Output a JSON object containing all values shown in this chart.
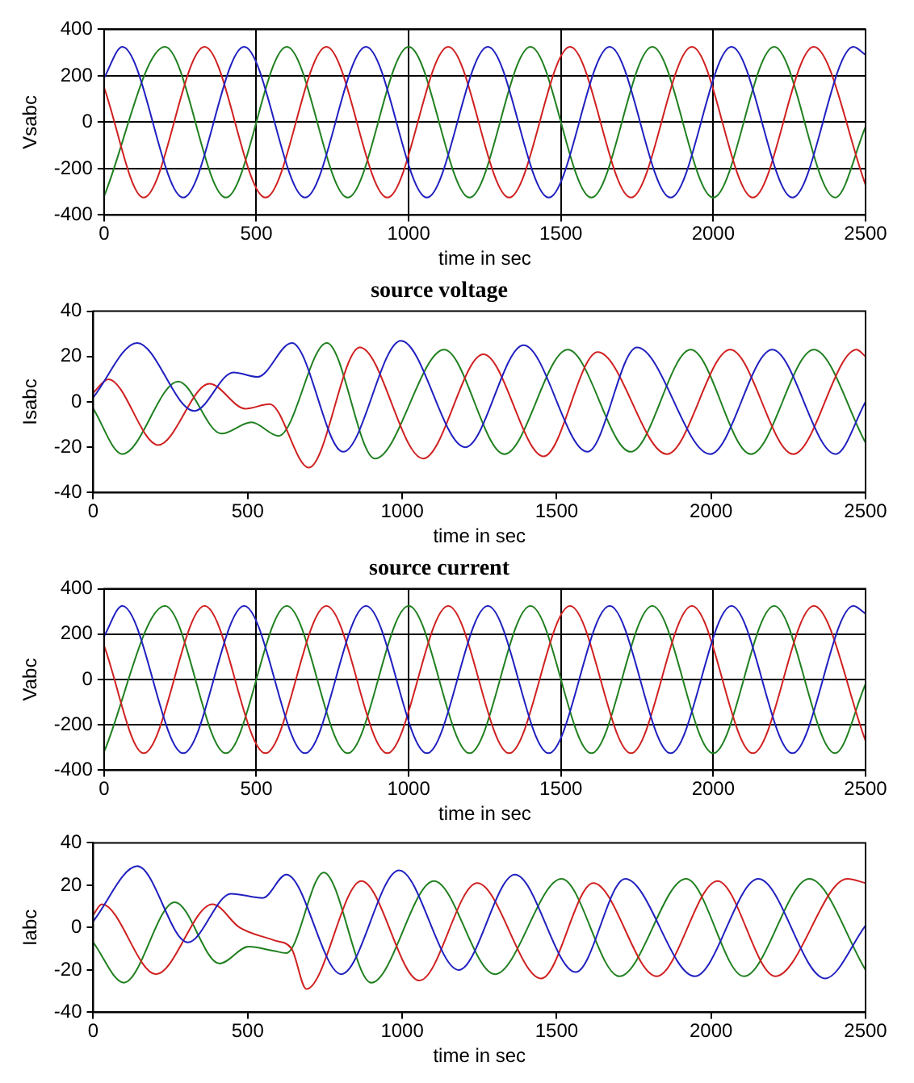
{
  "chart_data": [
    {
      "type": "line",
      "ylabel": "Vsabc",
      "xlabel": "time in sec",
      "xlim": [
        0,
        2500
      ],
      "xticks": [
        0,
        500,
        1000,
        1500,
        2000,
        2500
      ],
      "ylim": [
        -400,
        400
      ],
      "yticks": [
        -400,
        -200,
        0,
        200,
        400
      ],
      "grid": true,
      "series": [
        {
          "color": "#2020c0",
          "x": [
            0,
            60,
            260,
            460,
            660,
            860,
            1060,
            1260,
            1460,
            1660,
            1860,
            2060,
            2260,
            2460,
            2500
          ],
          "values": [
            190,
            325,
            -325,
            325,
            -325,
            325,
            -325,
            325,
            -325,
            325,
            -325,
            325,
            -325,
            325,
            290
          ]
        },
        {
          "color": "#d02020",
          "x": [
            0,
            130,
            330,
            530,
            730,
            930,
            1130,
            1330,
            1530,
            1730,
            1930,
            2130,
            2330,
            2500
          ],
          "values": [
            150,
            -325,
            325,
            -325,
            325,
            -325,
            325,
            -325,
            325,
            -325,
            325,
            -325,
            325,
            -270
          ]
        },
        {
          "color": "#208020",
          "x": [
            0,
            200,
            400,
            600,
            800,
            1000,
            1200,
            1400,
            1600,
            1800,
            2000,
            2200,
            2400,
            2500
          ],
          "values": [
            -320,
            325,
            -325,
            325,
            -325,
            325,
            -325,
            325,
            -325,
            325,
            -325,
            325,
            -325,
            -20
          ]
        }
      ]
    },
    {
      "type": "line",
      "title": "source voltage",
      "ylabel": "Isabc",
      "xlabel": "time in sec",
      "xlim": [
        0,
        2500
      ],
      "xticks": [
        0,
        500,
        1000,
        1500,
        2000,
        2500
      ],
      "ylim": [
        -40,
        40
      ],
      "yticks": [
        -40,
        -20,
        0,
        20,
        40
      ],
      "series": [
        {
          "color": "#2020c0",
          "x": [
            0,
            142,
            327,
            454,
            532,
            643,
            809,
            996,
            1204,
            1393,
            1600,
            1760,
            1997,
            2198,
            2403,
            2500
          ],
          "values": [
            2,
            26,
            -4,
            13,
            11,
            26,
            -22,
            27,
            -20,
            25,
            -22,
            24,
            -23,
            23,
            -23,
            0
          ]
        },
        {
          "color": "#d02020",
          "x": [
            0,
            49,
            210,
            376,
            493,
            571,
            698,
            863,
            1068,
            1263,
            1458,
            1633,
            1857,
            2062,
            2266,
            2471,
            2500
          ],
          "values": [
            4,
            10,
            -19,
            8,
            -3,
            -1,
            -29,
            24,
            -25,
            21,
            -24,
            22,
            -23,
            23,
            -23,
            23,
            20
          ]
        },
        {
          "color": "#208020",
          "x": [
            0,
            94,
            275,
            415,
            512,
            600,
            756,
            912,
            1136,
            1331,
            1536,
            1740,
            1934,
            2129,
            2333,
            2500
          ],
          "values": [
            -3,
            -23,
            9,
            -14,
            -9,
            -15,
            26,
            -25,
            23,
            -23,
            23,
            -22,
            23,
            -23,
            23,
            -18
          ]
        }
      ]
    },
    {
      "type": "line",
      "title": "source current",
      "ylabel": "Vabc",
      "xlabel": "time in sec",
      "xlim": [
        0,
        2500
      ],
      "xticks": [
        0,
        500,
        1000,
        1500,
        2000,
        2500
      ],
      "ylim": [
        -400,
        400
      ],
      "yticks": [
        -400,
        -200,
        0,
        200,
        400
      ],
      "grid": true,
      "series": [
        {
          "color": "#2020c0",
          "x": [
            0,
            60,
            260,
            460,
            660,
            860,
            1060,
            1260,
            1460,
            1660,
            1860,
            2060,
            2260,
            2460,
            2500
          ],
          "values": [
            190,
            325,
            -325,
            325,
            -325,
            325,
            -325,
            325,
            -325,
            325,
            -325,
            325,
            -325,
            325,
            290
          ]
        },
        {
          "color": "#d02020",
          "x": [
            0,
            130,
            330,
            530,
            730,
            930,
            1130,
            1330,
            1530,
            1730,
            1930,
            2130,
            2330,
            2500
          ],
          "values": [
            150,
            -325,
            325,
            -325,
            325,
            -325,
            325,
            -325,
            325,
            -325,
            325,
            -325,
            325,
            -270
          ]
        },
        {
          "color": "#208020",
          "x": [
            0,
            200,
            400,
            600,
            800,
            1000,
            1200,
            1400,
            1600,
            1800,
            2000,
            2200,
            2400,
            2500
          ],
          "values": [
            -320,
            325,
            -325,
            325,
            -325,
            325,
            -325,
            325,
            -325,
            325,
            -325,
            325,
            -325,
            -20
          ]
        }
      ]
    },
    {
      "type": "line",
      "ylabel": "Iabc",
      "xlabel": "time in sec",
      "xlim": [
        0,
        2500
      ],
      "xticks": [
        0,
        500,
        1000,
        1500,
        2000,
        2500
      ],
      "ylim": [
        -40,
        40
      ],
      "yticks": [
        -40,
        -20,
        0,
        20,
        40
      ],
      "series": [
        {
          "color": "#2020c0",
          "x": [
            0,
            143,
            306,
            446,
            549,
            625,
            803,
            990,
            1183,
            1365,
            1562,
            1722,
            1947,
            2153,
            2369,
            2500
          ],
          "values": [
            3,
            29,
            -7,
            16,
            14,
            25,
            -22,
            27,
            -20,
            25,
            -21,
            23,
            -23,
            23,
            -24,
            1
          ]
        },
        {
          "color": "#d02020",
          "x": [
            0,
            28,
            203,
            386,
            474,
            585,
            642,
            690,
            868,
            1056,
            1243,
            1450,
            1619,
            1824,
            2021,
            2208,
            2441,
            2500
          ],
          "values": [
            6,
            11,
            -22,
            11,
            0,
            -6,
            -10,
            -29,
            22,
            -25,
            21,
            -24,
            21,
            -23,
            22,
            -23,
            23,
            21
          ]
        },
        {
          "color": "#208020",
          "x": [
            0,
            99,
            264,
            409,
            503,
            585,
            625,
            746,
            900,
            1103,
            1300,
            1516,
            1703,
            1919,
            2106,
            2318,
            2500
          ],
          "values": [
            -7,
            -26,
            12,
            -17,
            -9,
            -11,
            -12,
            26,
            -26,
            22,
            -22,
            23,
            -23,
            23,
            -23,
            23,
            -20
          ]
        }
      ]
    }
  ]
}
